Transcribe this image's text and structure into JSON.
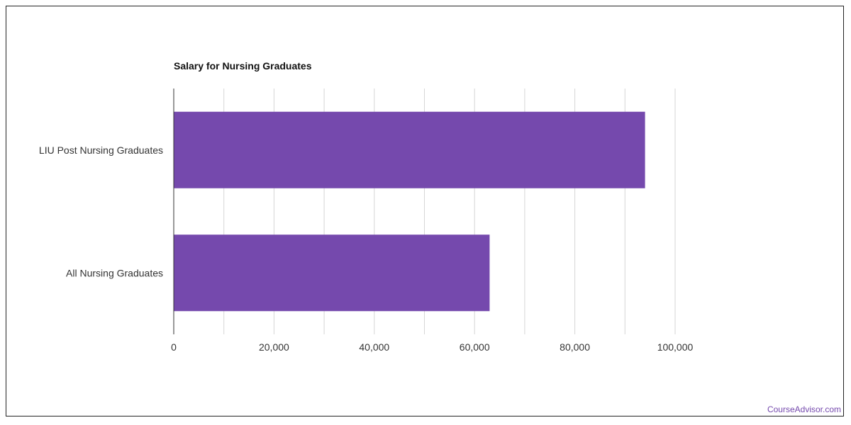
{
  "chart_data": {
    "type": "bar",
    "orientation": "horizontal",
    "title": "Salary for Nursing Graduates",
    "categories": [
      "LIU Post Nursing Graduates",
      "All Nursing Graduates"
    ],
    "values": [
      94000,
      63000
    ],
    "xlim": [
      0,
      100000
    ],
    "xticks": [
      0,
      20000,
      40000,
      60000,
      80000,
      100000
    ],
    "tick_labels": [
      "0",
      "20,000",
      "40,000",
      "60,000",
      "80,000",
      "100,000"
    ],
    "grid": true,
    "bar_color": "#7549ad"
  },
  "footer": {
    "source": "CourseAdvisor.com",
    "source_color": "#7549ad"
  }
}
